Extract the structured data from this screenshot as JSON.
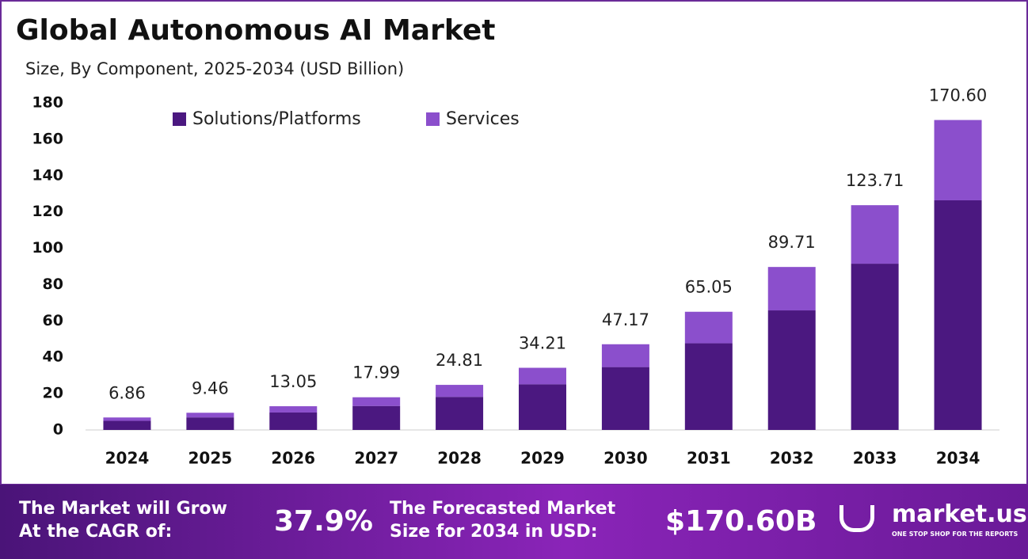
{
  "chart_data": {
    "type": "stacked_bar",
    "title": "Global Autonomous AI Market",
    "subtitle": "Size, By Component, 2025-2034 (USD Billion)",
    "categories": [
      "2024",
      "2025",
      "2026",
      "2027",
      "2028",
      "2029",
      "2030",
      "2031",
      "2032",
      "2033",
      "2034"
    ],
    "series": [
      {
        "name": "Solutions/Platforms",
        "color": "#4b1880",
        "values": [
          5.0,
          6.9,
          9.6,
          13.2,
          18.2,
          25.1,
          34.6,
          47.7,
          65.8,
          91.5,
          126.4
        ]
      },
      {
        "name": "Services",
        "color": "#8b4fcc",
        "values": [
          1.86,
          2.56,
          3.45,
          4.79,
          6.61,
          9.11,
          12.57,
          17.35,
          23.91,
          32.21,
          44.2
        ]
      }
    ],
    "totals": [
      6.86,
      9.46,
      13.05,
      17.99,
      24.81,
      34.21,
      47.17,
      65.05,
      89.71,
      123.71,
      170.6
    ],
    "total_labels": [
      "6.86",
      "9.46",
      "13.05",
      "17.99",
      "24.81",
      "34.21",
      "47.17",
      "65.05",
      "89.71",
      "123.71",
      "170.60"
    ],
    "ylim": [
      0,
      180
    ],
    "yticks": [
      0,
      20,
      40,
      60,
      80,
      100,
      120,
      140,
      160,
      180
    ],
    "grid": false,
    "legend": "top"
  },
  "footer": {
    "cagr_text": [
      "The Market will Grow",
      "At the CAGR of:"
    ],
    "cagr_value": "37.9%",
    "forecast_text": [
      "The Forecasted Market",
      "Size for 2034 in USD:"
    ],
    "forecast_value": "$170.60B",
    "logo": "market.us",
    "tagline": "ONE STOP SHOP FOR THE REPORTS"
  }
}
